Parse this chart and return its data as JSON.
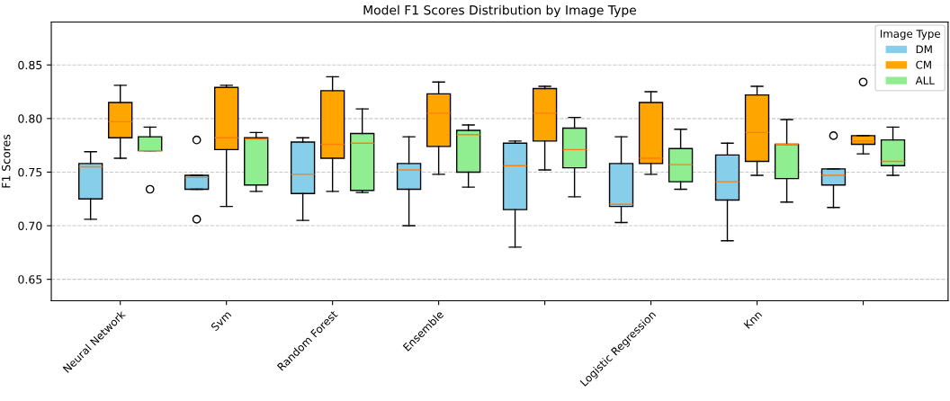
{
  "chart_data": {
    "type": "box",
    "title": "Model F1 Scores Distribution by Image Type",
    "ylabel": "F1 Scores",
    "legend_title": "Image Type",
    "categories": [
      "Neural Network",
      "Svm",
      "Random Forest",
      "Ensemble",
      null,
      "Logistic Regression",
      "Knn",
      null
    ],
    "ylim": [
      0.63,
      0.89
    ],
    "yticks": [
      {
        "value": 0.65,
        "label": "0.65"
      },
      {
        "value": 0.7,
        "label": "0.70"
      },
      {
        "value": 0.75,
        "label": "0.75"
      },
      {
        "value": 0.8,
        "label": "0.80"
      },
      {
        "value": 0.85,
        "label": "0.85"
      }
    ],
    "grid": "y",
    "legend": "top right",
    "series": [
      {
        "name": "DM",
        "color": "#87ceeb",
        "boxes": [
          {
            "low": 0.706,
            "q1": 0.725,
            "median": 0.755,
            "q3": 0.758,
            "high": 0.769
          },
          {
            "low": 0.734,
            "q1": 0.734,
            "median": 0.745,
            "q3": 0.747,
            "high": 0.747,
            "outliers": [
              0.78,
              0.706
            ]
          },
          {
            "low": 0.705,
            "q1": 0.73,
            "median": 0.748,
            "q3": 0.778,
            "high": 0.782
          },
          {
            "low": 0.7,
            "q1": 0.734,
            "median": 0.752,
            "q3": 0.758,
            "high": 0.783
          },
          {
            "low": 0.68,
            "q1": 0.715,
            "median": 0.756,
            "q3": 0.777,
            "high": 0.779
          },
          {
            "low": 0.703,
            "q1": 0.718,
            "median": 0.72,
            "q3": 0.758,
            "high": 0.783
          },
          {
            "low": 0.686,
            "q1": 0.724,
            "median": 0.741,
            "q3": 0.766,
            "high": 0.777
          },
          {
            "low": 0.717,
            "q1": 0.738,
            "median": 0.747,
            "q3": 0.753,
            "high": 0.753,
            "outliers": [
              0.784
            ]
          }
        ]
      },
      {
        "name": "CM",
        "color": "#ffa500",
        "boxes": [
          {
            "low": 0.763,
            "q1": 0.782,
            "median": 0.797,
            "q3": 0.815,
            "high": 0.831
          },
          {
            "low": 0.718,
            "q1": 0.771,
            "median": 0.782,
            "q3": 0.829,
            "high": 0.831
          },
          {
            "low": 0.732,
            "q1": 0.763,
            "median": 0.776,
            "q3": 0.826,
            "high": 0.839
          },
          {
            "low": 0.748,
            "q1": 0.774,
            "median": 0.805,
            "q3": 0.823,
            "high": 0.834
          },
          {
            "low": 0.752,
            "q1": 0.779,
            "median": 0.805,
            "q3": 0.828,
            "high": 0.83
          },
          {
            "low": 0.748,
            "q1": 0.758,
            "median": 0.763,
            "q3": 0.815,
            "high": 0.825
          },
          {
            "low": 0.747,
            "q1": 0.76,
            "median": 0.787,
            "q3": 0.822,
            "high": 0.83
          },
          {
            "low": 0.767,
            "q1": 0.776,
            "median": 0.779,
            "q3": 0.784,
            "high": 0.784,
            "outliers": [
              0.834
            ]
          }
        ]
      },
      {
        "name": "ALL",
        "color": "#90ee90",
        "boxes": [
          {
            "low": 0.77,
            "q1": 0.77,
            "median": 0.77,
            "q3": 0.783,
            "high": 0.792,
            "outliers": [
              0.734
            ]
          },
          {
            "low": 0.732,
            "q1": 0.738,
            "median": 0.781,
            "q3": 0.782,
            "high": 0.787
          },
          {
            "low": 0.731,
            "q1": 0.733,
            "median": 0.777,
            "q3": 0.786,
            "high": 0.809
          },
          {
            "low": 0.736,
            "q1": 0.75,
            "median": 0.785,
            "q3": 0.789,
            "high": 0.794
          },
          {
            "low": 0.727,
            "q1": 0.754,
            "median": 0.771,
            "q3": 0.791,
            "high": 0.801
          },
          {
            "low": 0.734,
            "q1": 0.741,
            "median": 0.757,
            "q3": 0.772,
            "high": 0.79
          },
          {
            "low": 0.722,
            "q1": 0.744,
            "median": 0.776,
            "q3": 0.776,
            "high": 0.799
          },
          {
            "low": 0.747,
            "q1": 0.756,
            "median": 0.76,
            "q3": 0.78,
            "high": 0.792
          }
        ]
      }
    ]
  }
}
